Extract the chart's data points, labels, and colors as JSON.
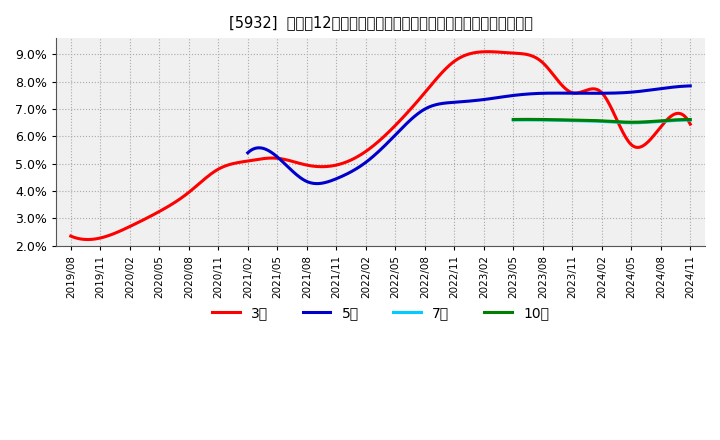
{
  "title": "[5932]  売上高12か月移動合計の対前年同期増減率の標準偏差の推移",
  "background_color": "#ffffff",
  "plot_background": "#f0f0f0",
  "grid_color": "#aaaaaa",
  "ylim": [
    0.02,
    0.096
  ],
  "yticks": [
    0.02,
    0.03,
    0.04,
    0.05,
    0.06,
    0.07,
    0.08,
    0.09
  ],
  "series": {
    "3年": {
      "color": "#ff0000",
      "x": [
        "2019/08",
        "2019/11",
        "2020/02",
        "2020/05",
        "2020/08",
        "2020/11",
        "2021/02",
        "2021/05",
        "2021/08",
        "2021/11",
        "2022/02",
        "2022/05",
        "2022/08",
        "2022/11",
        "2023/02",
        "2023/05",
        "2023/08",
        "2023/11",
        "2024/02",
        "2024/05",
        "2024/08",
        "2024/11"
      ],
      "y": [
        0.0235,
        0.0228,
        0.027,
        0.0325,
        0.0395,
        0.048,
        0.051,
        0.052,
        0.0495,
        0.0495,
        0.0545,
        0.064,
        0.076,
        0.0875,
        0.091,
        0.0905,
        0.087,
        0.076,
        0.076,
        0.057,
        0.0635,
        0.0645
      ]
    },
    "5年": {
      "color": "#0000cc",
      "x": [
        "2021/02",
        "2021/05",
        "2021/08",
        "2021/11",
        "2022/02",
        "2022/05",
        "2022/08",
        "2022/11",
        "2023/02",
        "2023/05",
        "2023/08",
        "2023/11",
        "2024/02",
        "2024/05",
        "2024/08",
        "2024/11"
      ],
      "y": [
        0.054,
        0.0525,
        0.0435,
        0.0445,
        0.0505,
        0.0605,
        0.07,
        0.0725,
        0.0735,
        0.075,
        0.0758,
        0.0758,
        0.0758,
        0.0762,
        0.0775,
        0.0785
      ]
    },
    "7年": {
      "color": "#00ccff",
      "x": [
        "2023/05",
        "2023/08",
        "2023/11",
        "2024/02",
        "2024/05",
        "2024/08",
        "2024/11"
      ],
      "y": [
        0.066,
        0.066,
        0.0658,
        0.0655,
        0.065,
        0.0655,
        0.066
      ]
    },
    "10年": {
      "color": "#008000",
      "x": [
        "2023/05",
        "2023/08",
        "2023/11",
        "2024/02",
        "2024/05",
        "2024/08",
        "2024/11"
      ],
      "y": [
        0.0662,
        0.0662,
        0.066,
        0.0657,
        0.0652,
        0.0657,
        0.0662
      ]
    }
  },
  "xtick_labels": [
    "2019/08",
    "2019/11",
    "2020/02",
    "2020/05",
    "2020/08",
    "2020/11",
    "2021/02",
    "2021/05",
    "2021/08",
    "2021/11",
    "2022/02",
    "2022/05",
    "2022/08",
    "2022/11",
    "2023/02",
    "2023/05",
    "2023/08",
    "2023/11",
    "2024/02",
    "2024/05",
    "2024/08",
    "2024/11"
  ],
  "legend_labels": [
    "3年",
    "5年",
    "7年",
    "10年"
  ],
  "legend_colors": [
    "#ff0000",
    "#0000cc",
    "#00ccff",
    "#008000"
  ]
}
